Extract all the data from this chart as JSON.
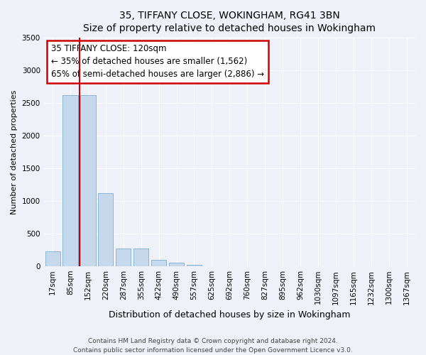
{
  "title1": "35, TIFFANY CLOSE, WOKINGHAM, RG41 3BN",
  "title2": "Size of property relative to detached houses in Wokingham",
  "xlabel": "Distribution of detached houses by size in Wokingham",
  "ylabel": "Number of detached properties",
  "categories": [
    "17sqm",
    "85sqm",
    "152sqm",
    "220sqm",
    "287sqm",
    "355sqm",
    "422sqm",
    "490sqm",
    "557sqm",
    "625sqm",
    "692sqm",
    "760sqm",
    "827sqm",
    "895sqm",
    "962sqm",
    "1030sqm",
    "1097sqm",
    "1165sqm",
    "1232sqm",
    "1300sqm",
    "1367sqm"
  ],
  "values": [
    230,
    2620,
    2620,
    1120,
    270,
    270,
    100,
    50,
    20,
    5,
    0,
    0,
    0,
    0,
    0,
    0,
    0,
    0,
    0,
    0,
    0
  ],
  "bar_color": "#c5d8ec",
  "bar_edge_color": "#7bafd4",
  "vline_color": "#cc0000",
  "vline_x": 1.5,
  "ylim": [
    0,
    3500
  ],
  "yticks": [
    0,
    500,
    1000,
    1500,
    2000,
    2500,
    3000,
    3500
  ],
  "annotation_text": "35 TIFFANY CLOSE: 120sqm\n← 35% of detached houses are smaller (1,562)\n65% of semi-detached houses are larger (2,886) →",
  "annotation_box_facecolor": "#ffffff",
  "annotation_box_edgecolor": "#cc0000",
  "footer1": "Contains HM Land Registry data © Crown copyright and database right 2024.",
  "footer2": "Contains public sector information licensed under the Open Government Licence v3.0.",
  "bg_color": "#eef2f8",
  "plot_bg_color": "#eef2f8",
  "grid_color": "#ffffff",
  "title1_fontsize": 11,
  "title2_fontsize": 10,
  "ylabel_fontsize": 8,
  "xlabel_fontsize": 9,
  "tick_fontsize": 7.5,
  "annotation_fontsize": 8.5,
  "footer_fontsize": 6.5
}
